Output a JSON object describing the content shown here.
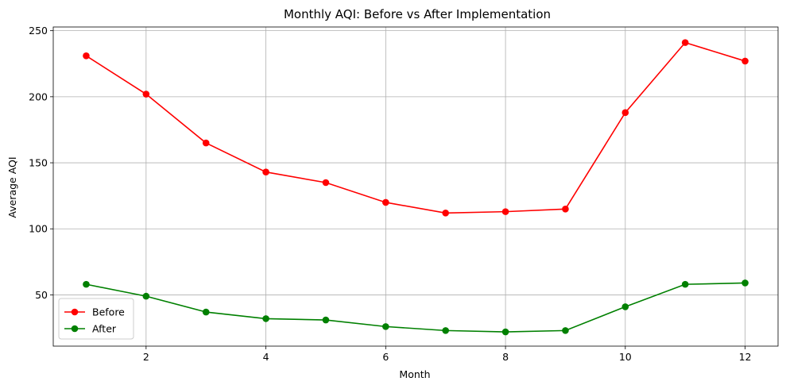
{
  "chart_data": {
    "type": "line",
    "title": "Monthly AQI: Before vs After Implementation",
    "xlabel": "Month",
    "ylabel": "Average AQI",
    "x": [
      1,
      2,
      3,
      4,
      5,
      6,
      7,
      8,
      9,
      10,
      11,
      12
    ],
    "xlim": [
      0.45,
      12.55
    ],
    "ylim": [
      11.2,
      252.8
    ],
    "xticks": [
      2,
      4,
      6,
      8,
      10,
      12
    ],
    "yticks": [
      50,
      100,
      150,
      200,
      250
    ],
    "grid": true,
    "legend_position": "lower-left",
    "series": [
      {
        "name": "Before",
        "color": "#ff0000",
        "marker": "circle",
        "values": [
          231,
          202,
          165,
          143,
          135,
          120,
          112,
          113,
          115,
          188,
          241,
          227
        ]
      },
      {
        "name": "After",
        "color": "#008000",
        "marker": "circle",
        "values": [
          58,
          49,
          37,
          32,
          31,
          26,
          23,
          22,
          23,
          41,
          58,
          59
        ]
      }
    ]
  }
}
